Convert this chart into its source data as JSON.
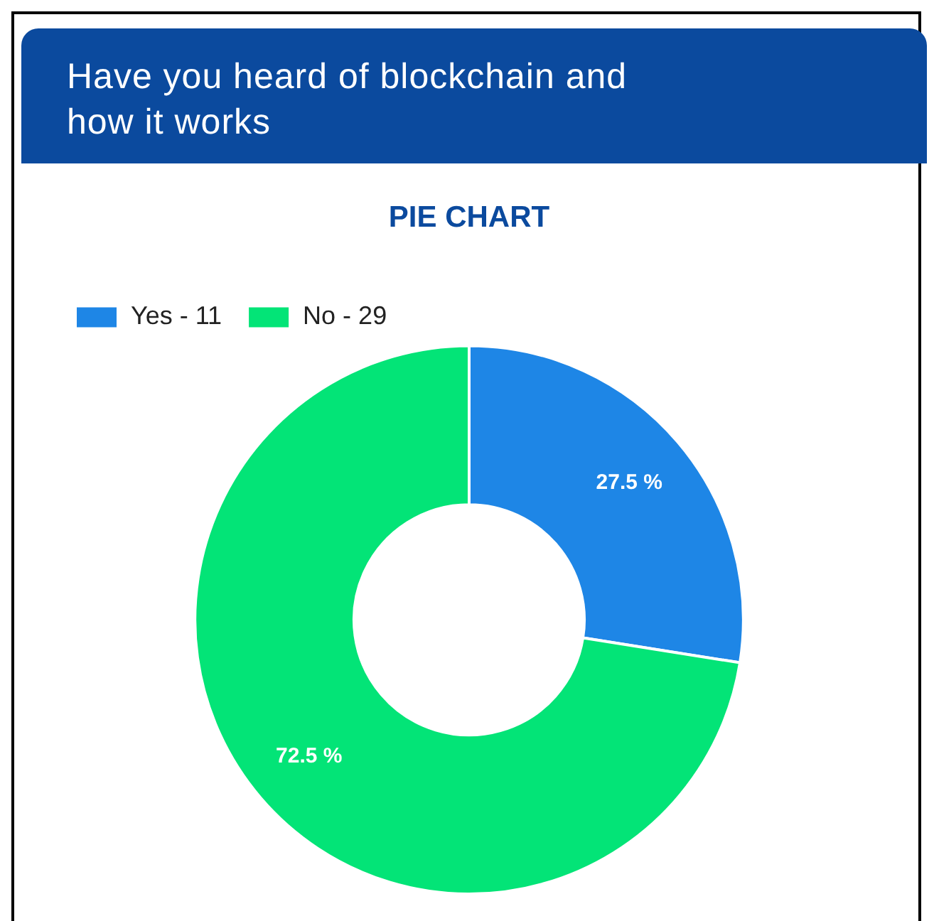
{
  "chart_data": {
    "type": "donut",
    "title": "Have you heard of blockchain and how it works",
    "subtitle": "PIE CHART",
    "categories": [
      "Yes - 11",
      "No - 29"
    ],
    "values": [
      27.5,
      72.5
    ],
    "colors": [
      "#1e86e6",
      "#03e477"
    ],
    "value_labels": [
      "27.5 %",
      "72.5 %"
    ],
    "legend": "top left"
  }
}
